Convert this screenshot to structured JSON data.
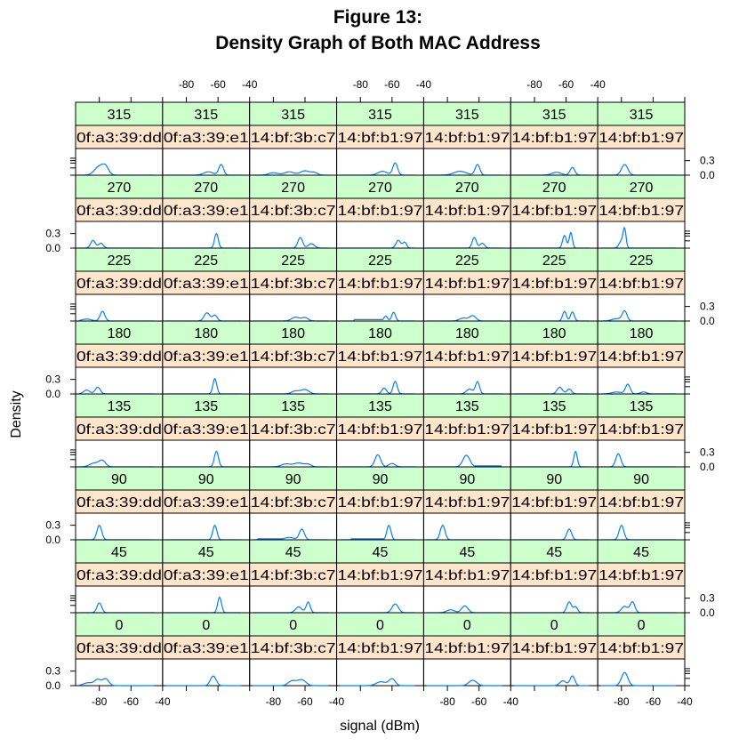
{
  "chart_data": {
    "type": "line",
    "title": [
      "Figure 13:",
      "Density Graph of Both MAC Address"
    ],
    "xlabel": "signal (dBm)",
    "ylabel": "Density",
    "x_ticks": [
      -80,
      -60,
      -40
    ],
    "y_ticks": [
      "0.0",
      "0.3"
    ],
    "xlim": [
      -95,
      -40
    ],
    "ylim": [
      0,
      0.55
    ],
    "mac_labels": [
      "0f:a3:39:dd",
      "0f:a3:39:e1",
      "14:bf:3b:c7",
      "14:bf:b1:97",
      "14:bf:b1:97",
      "14:bf:b1:97",
      "14:bf:b1:97"
    ],
    "orientations": [
      "315",
      "270",
      "225",
      "180",
      "135",
      "90",
      "45",
      "0"
    ],
    "colors": {
      "strip_top": "#ccffcc",
      "strip_bottom": "#ffe5cc",
      "line": "#0080ff"
    },
    "panels": [
      [
        {
          "peaks": [
            [
              -80,
              0.18,
              3
            ],
            [
              -76,
              0.14,
              2
            ]
          ]
        },
        {
          "peaks": [
            [
              -66,
              0.07,
              3
            ],
            [
              -58,
              0.22,
              1.5
            ]
          ]
        },
        {
          "peaks": [
            [
              -80,
              0.05,
              3
            ],
            [
              -70,
              0.07,
              3
            ],
            [
              -60,
              0.09,
              3
            ],
            [
              -54,
              0.05,
              2
            ]
          ]
        },
        {
          "peaks": [
            [
              -66,
              0.08,
              3
            ],
            [
              -58,
              0.25,
              1.5
            ]
          ]
        },
        {
          "peaks": [
            [
              -72,
              0.08,
              4
            ],
            [
              -61,
              0.22,
              1.5
            ]
          ]
        },
        {
          "peaks": [
            [
              -66,
              0.06,
              3
            ],
            [
              -56,
              0.16,
              1.5
            ]
          ]
        },
        {
          "peaks": [
            [
              -78,
              0.22,
              2
            ]
          ]
        }
      ],
      [
        {
          "peaks": [
            [
              -84,
              0.16,
              1.5
            ],
            [
              -79,
              0.1,
              1.5
            ]
          ]
        },
        {
          "peaks": [
            [
              -61,
              0.3,
              1.2
            ]
          ]
        },
        {
          "peaks": [
            [
              -63,
              0.22,
              1.5
            ],
            [
              -56,
              0.09,
              2
            ]
          ]
        },
        {
          "peaks": [
            [
              -56,
              0.16,
              1.5
            ],
            [
              -52,
              0.12,
              1.2
            ]
          ]
        },
        {
          "peaks": [
            [
              -63,
              0.22,
              1.3
            ],
            [
              -58,
              0.1,
              1.5
            ]
          ]
        },
        {
          "peaks": [
            [
              -61,
              0.26,
              1.2
            ],
            [
              -57,
              0.32,
              1
            ]
          ]
        },
        {
          "peaks": [
            [
              -80,
              0.15,
              1.5
            ],
            [
              -78,
              0.36,
              0.9
            ]
          ]
        }
      ],
      [
        {
          "peaks": [
            [
              -88,
              0.04,
              3
            ],
            [
              -78,
              0.2,
              1.5
            ]
          ]
        },
        {
          "peaks": [
            [
              -67,
              0.17,
              1.8
            ],
            [
              -62,
              0.12,
              1.5
            ]
          ]
        },
        {
          "peaks": [
            [
              -66,
              0.08,
              2.5
            ],
            [
              -60,
              0.07,
              2
            ]
          ]
        },
        {
          "peaks": [
            [
              -64,
              0.1,
              1.2
            ],
            [
              -59,
              0.18,
              1.2
            ]
          ],
          "floor": [
            -84,
            -62,
            0.03
          ]
        },
        {
          "peaks": [
            [
              -70,
              0.06,
              2.5
            ],
            [
              -64,
              0.11,
              2
            ]
          ]
        },
        {
          "peaks": [
            [
              -61,
              0.2,
              1.2
            ],
            [
              -56,
              0.19,
              1.2
            ]
          ]
        },
        {
          "peaks": [
            [
              -83,
              0.05,
              3
            ],
            [
              -78,
              0.2,
              1.5
            ]
          ]
        }
      ],
      [
        {
          "peaks": [
            [
              -88,
              0.08,
              2
            ],
            [
              -81,
              0.14,
              1.6
            ]
          ]
        },
        {
          "peaks": [
            [
              -62,
              0.32,
              1.2
            ]
          ]
        },
        {
          "peaks": [
            [
              -66,
              0.06,
              2.5
            ],
            [
              -60,
              0.09,
              2.5
            ]
          ]
        },
        {
          "peaks": [
            [
              -65,
              0.12,
              1.5
            ],
            [
              -58,
              0.26,
              1.3
            ]
          ]
        },
        {
          "peaks": [
            [
              -66,
              0.1,
              2
            ],
            [
              -61,
              0.25,
              1.3
            ]
          ]
        },
        {
          "peaks": [
            [
              -64,
              0.14,
              1.7
            ],
            [
              -58,
              0.1,
              1.5
            ]
          ]
        },
        {
          "peaks": [
            [
              -83,
              0.04,
              3
            ],
            [
              -76,
              0.2,
              1.5
            ],
            [
              -66,
              0.04,
              2
            ]
          ]
        }
      ],
      [
        {
          "peaks": [
            [
              -83,
              0.08,
              3
            ],
            [
              -78,
              0.12,
              2
            ]
          ]
        },
        {
          "peaks": [
            [
              -61,
              0.32,
              1.3
            ]
          ]
        },
        {
          "peaks": [
            [
              -72,
              0.06,
              3
            ],
            [
              -64,
              0.08,
              3
            ],
            [
              -58,
              0.05,
              2
            ]
          ]
        },
        {
          "peaks": [
            [
              -69,
              0.25,
              1.8
            ],
            [
              -60,
              0.07,
              2
            ]
          ]
        },
        {
          "peaks": [
            [
              -68,
              0.24,
              2.2
            ]
          ],
          "floor": [
            -68,
            -46,
            0.02
          ]
        },
        {
          "peaks": [
            [
              -54,
              0.32,
              1.1
            ]
          ]
        },
        {
          "peaks": [
            [
              -82,
              0.27,
              1.6
            ]
          ]
        }
      ],
      [
        {
          "peaks": [
            [
              -80,
              0.3,
              1.5
            ]
          ]
        },
        {
          "peaks": [
            [
              -62,
              0.3,
              1.3
            ]
          ]
        },
        {
          "peaks": [
            [
              -70,
              0.05,
              3
            ],
            [
              -62,
              0.22,
              1.6
            ]
          ],
          "floor": [
            -90,
            -70,
            0.02
          ]
        },
        {
          "peaks": [
            [
              -62,
              0.3,
              1.3
            ]
          ],
          "floor": [
            -86,
            -62,
            0.02
          ]
        },
        {
          "peaks": [
            [
              -83,
              0.3,
              1.5
            ]
          ]
        },
        {
          "peaks": [
            [
              -58,
              0.22,
              1.5
            ]
          ]
        },
        {
          "peaks": [
            [
              -80,
              0.3,
              1.5
            ]
          ]
        }
      ],
      [
        {
          "peaks": [
            [
              -80,
              0.2,
              1.5
            ]
          ]
        },
        {
          "peaks": [
            [
              -59,
              0.32,
              1.2
            ]
          ]
        },
        {
          "peaks": [
            [
              -64,
              0.12,
              2
            ],
            [
              -58,
              0.22,
              1.3
            ]
          ]
        },
        {
          "peaks": [
            [
              -58,
              0.18,
              2
            ]
          ]
        },
        {
          "peaks": [
            [
              -78,
              0.06,
              2.5
            ],
            [
              -69,
              0.14,
              2
            ]
          ]
        },
        {
          "peaks": [
            [
              -58,
              0.22,
              1.5
            ],
            [
              -54,
              0.12,
              1.3
            ]
          ]
        },
        {
          "peaks": [
            [
              -78,
              0.13,
              2
            ],
            [
              -73,
              0.22,
              1.5
            ]
          ]
        }
      ],
      [
        {
          "peaks": [
            [
              -87,
              0.06,
              3
            ],
            [
              -81,
              0.12,
              2
            ],
            [
              -76,
              0.14,
              2
            ]
          ]
        },
        {
          "peaks": [
            [
              -63,
              0.2,
              1.8
            ]
          ]
        },
        {
          "peaks": [
            [
              -68,
              0.1,
              2.5
            ],
            [
              -62,
              0.12,
              2.5
            ]
          ]
        },
        {
          "peaks": [
            [
              -67,
              0.08,
              3
            ],
            [
              -60,
              0.14,
              2
            ]
          ]
        },
        {
          "peaks": [
            [
              -64,
              0.11,
              2.5
            ]
          ]
        },
        {
          "peaks": [
            [
              -62,
              0.1,
              2
            ],
            [
              -56,
              0.2,
              1.5
            ]
          ]
        },
        {
          "peaks": [
            [
              -78,
              0.27,
              2
            ]
          ]
        }
      ]
    ]
  }
}
